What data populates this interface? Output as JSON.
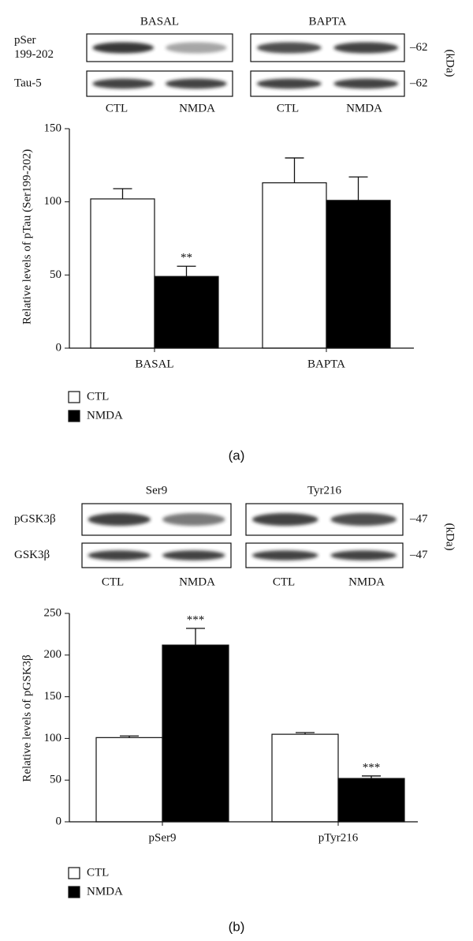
{
  "chart_data": [
    {
      "type": "bar",
      "panel_label": "(a)",
      "blot": {
        "headers": [
          "BASAL",
          "BAPTA"
        ],
        "row_labels": [
          [
            "pSer",
            "199-202"
          ],
          [
            "Tau-5"
          ]
        ],
        "lanes": [
          "CTL",
          "NMDA",
          "CTL",
          "NMDA"
        ],
        "markers": [
          "–62",
          "–62"
        ],
        "marker_unit": "(kDa)"
      },
      "ylabel": "Relative levels of pTau (Ser199-202)",
      "categories": [
        "BASAL",
        "BAPTA"
      ],
      "series": [
        {
          "name": "CTL",
          "color": "#ffffff",
          "values": [
            102,
            113
          ],
          "errors": [
            7,
            17
          ],
          "significance": [
            null,
            null
          ]
        },
        {
          "name": "NMDA",
          "color": "#000000",
          "values": [
            49,
            101
          ],
          "errors": [
            7,
            16
          ],
          "significance": [
            "**",
            null
          ]
        }
      ],
      "ylim": [
        0,
        150
      ],
      "yticks": [
        0,
        50,
        100,
        150
      ]
    },
    {
      "type": "bar",
      "panel_label": "(b)",
      "blot": {
        "headers": [
          "Ser9",
          "Tyr216"
        ],
        "row_labels": [
          [
            "pGSK3β"
          ],
          [
            "GSK3β"
          ]
        ],
        "lanes": [
          "CTL",
          "NMDA",
          "CTL",
          "NMDA"
        ],
        "markers": [
          "–47",
          "–47"
        ],
        "marker_unit": "(kDa)"
      },
      "ylabel": "Relative levels of pGSK3β",
      "categories": [
        "pSer9",
        "pTyr216"
      ],
      "series": [
        {
          "name": "CTL",
          "color": "#ffffff",
          "values": [
            101,
            105
          ],
          "errors": [
            2,
            2
          ],
          "significance": [
            null,
            null
          ]
        },
        {
          "name": "NMDA",
          "color": "#000000",
          "values": [
            212,
            52
          ],
          "errors": [
            20,
            3
          ],
          "significance": [
            "***",
            "***"
          ]
        }
      ],
      "ylim": [
        0,
        250
      ],
      "yticks": [
        0,
        50,
        100,
        150,
        200,
        250
      ]
    }
  ]
}
